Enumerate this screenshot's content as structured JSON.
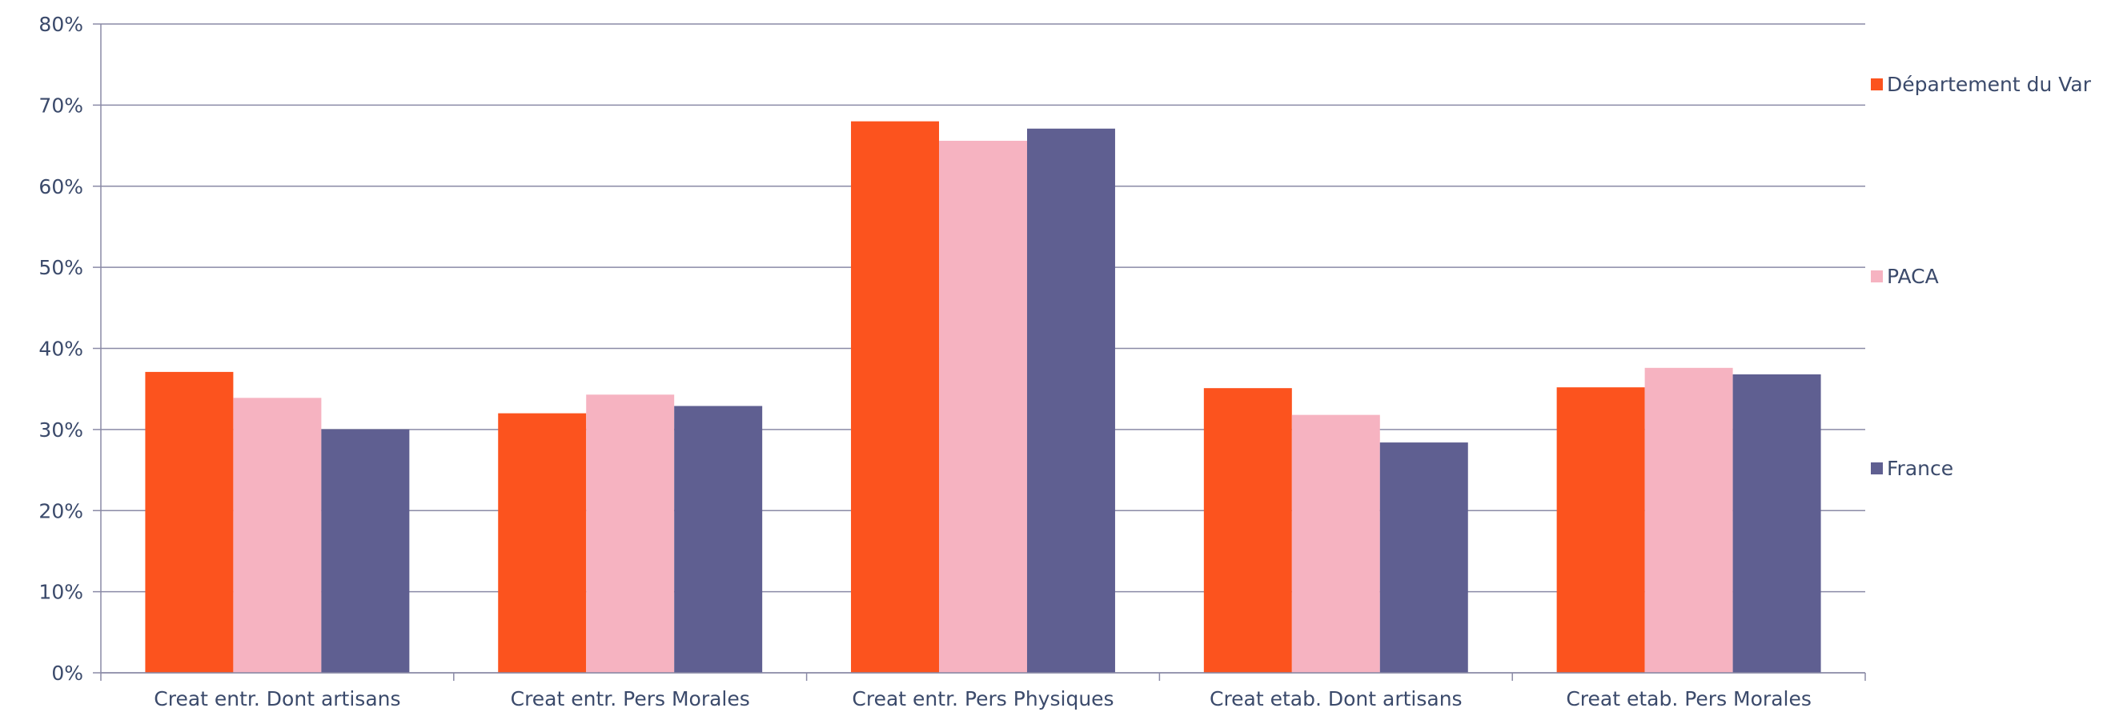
{
  "chart_data": {
    "type": "bar",
    "categories": [
      "Creat entr. Dont artisans",
      "Creat entr. Pers Morales",
      "Creat entr. Pers Physiques",
      "Creat etab. Dont artisans",
      "Creat etab. Pers Morales"
    ],
    "series": [
      {
        "name": "Département du Var",
        "color": "#fc531e",
        "values": [
          37.1,
          32.0,
          68.0,
          35.1,
          35.2
        ]
      },
      {
        "name": "PACA",
        "color": "#f6b3c1",
        "values": [
          33.9,
          34.3,
          65.6,
          31.8,
          37.6
        ]
      },
      {
        "name": "France",
        "color": "#5f5f91",
        "values": [
          30.0,
          32.9,
          67.1,
          28.4,
          36.8
        ]
      }
    ],
    "ylim": [
      0,
      80
    ],
    "yticks": [
      "0%",
      "10%",
      "20%",
      "30%",
      "40%",
      "50%",
      "60%",
      "70%",
      "80%"
    ],
    "grid": true,
    "legend": "right",
    "title": "",
    "xlabel": "",
    "ylabel": ""
  }
}
